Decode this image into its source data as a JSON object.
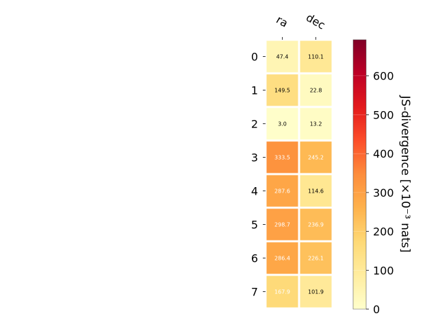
{
  "chart_data": {
    "type": "heatmap",
    "columns": [
      "ra",
      "dec"
    ],
    "rows": [
      "0",
      "1",
      "2",
      "3",
      "4",
      "5",
      "6",
      "7"
    ],
    "values": [
      [
        47.4,
        110.1
      ],
      [
        149.5,
        22.8
      ],
      [
        3.0,
        13.2
      ],
      [
        333.5,
        245.2
      ],
      [
        287.6,
        114.6
      ],
      [
        298.7,
        236.9
      ],
      [
        286.4,
        226.1
      ],
      [
        167.9,
        101.9
      ]
    ],
    "value_labels": [
      [
        "47.4",
        "110.1"
      ],
      [
        "149.5",
        "22.8"
      ],
      [
        "3.0",
        "13.2"
      ],
      [
        "333.5",
        "245.2"
      ],
      [
        "287.6",
        "114.6"
      ],
      [
        "298.7",
        "236.9"
      ],
      [
        "286.4",
        "226.1"
      ],
      [
        "167.9",
        "101.9"
      ]
    ],
    "colormap": "YlOrRd",
    "colorbar": {
      "label": "JS-divergence [×10⁻³ nats]",
      "vmin": 0,
      "vmax": 693,
      "ticks": [
        0,
        100,
        200,
        300,
        400,
        500,
        600
      ],
      "tick_labels": [
        "0",
        "100",
        "200",
        "300",
        "400",
        "500",
        "600"
      ]
    },
    "label_colors": {
      "light": "#ffffff",
      "dark": "#000000"
    },
    "label_threshold": 150
  }
}
